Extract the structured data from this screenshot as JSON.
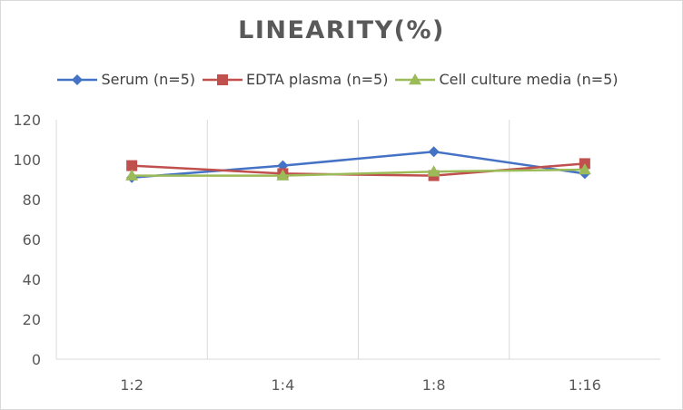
{
  "chart_data": {
    "type": "line",
    "title": "LINEARITY(%)",
    "xlabel": "",
    "ylabel": "",
    "categories": [
      "1:2",
      "1:4",
      "1:8",
      "1:16"
    ],
    "ylim": [
      0,
      120
    ],
    "yticks": [
      0,
      20,
      40,
      60,
      80,
      100,
      120
    ],
    "grid": "vertical",
    "legend_position": "top",
    "series": [
      {
        "name": "Serum (n=5)",
        "values": [
          91,
          97,
          104,
          93
        ],
        "color": "#4472c4",
        "marker": "diamond"
      },
      {
        "name": "EDTA plasma (n=5)",
        "values": [
          97,
          93,
          92,
          98
        ],
        "color": "#c0504d",
        "marker": "square"
      },
      {
        "name": "Cell culture media (n=5)",
        "values": [
          92,
          92,
          94,
          95
        ],
        "color": "#9bbb59",
        "marker": "triangle"
      }
    ]
  }
}
